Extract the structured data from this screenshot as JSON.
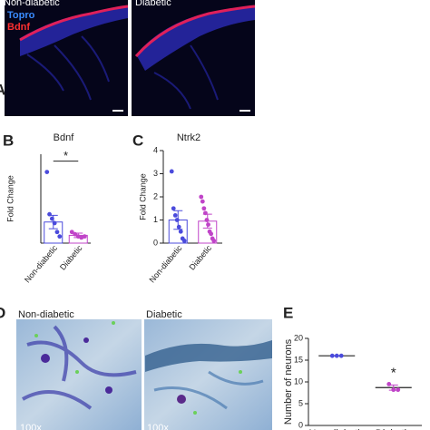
{
  "figure": {
    "panel_a": {
      "letter": "A",
      "left_label": "Non-diabetic",
      "right_label": "Diabetic",
      "stain_1": "Topro",
      "stain_2": "Bdnf"
    },
    "panel_d": {
      "letter": "D",
      "left_label": "Non-diabetic",
      "right_label": "Diabetic",
      "left_mag": "100x",
      "right_mag": "100x"
    },
    "letters": [
      "B",
      "C",
      "E"
    ]
  },
  "chart_data": [
    {
      "type": "bar",
      "title": "Bdnf",
      "ylabel": "Fold Change",
      "categories": [
        "Non-diabetic",
        "Diabetic"
      ],
      "values": [
        0.95,
        0.35
      ],
      "errors": [
        0.3,
        0.1
      ],
      "colors": [
        "#4b4bdc",
        "#c044c8"
      ],
      "points": [
        [
          3.2,
          1.3,
          1.1,
          0.9,
          0.5,
          0.3
        ],
        [
          0.5,
          0.4,
          0.3,
          0.25,
          0.3
        ]
      ],
      "ylim": [
        0,
        4
      ],
      "annotation": "*"
    },
    {
      "type": "bar",
      "title": "Ntrk2",
      "ylabel": "Fold Change",
      "categories": [
        "Non-diabetic",
        "Diabetic"
      ],
      "values": [
        1.0,
        0.95
      ],
      "errors": [
        0.4,
        0.3
      ],
      "colors": [
        "#4b4bdc",
        "#c044c8"
      ],
      "points": [
        [
          3.1,
          1.5,
          1.2,
          1.0,
          0.7,
          0.5,
          0.2,
          0.1
        ],
        [
          2.0,
          1.8,
          1.5,
          1.3,
          1.0,
          0.8,
          0.5,
          0.4,
          0.2,
          0.1
        ]
      ],
      "ylim": [
        0,
        4
      ],
      "yticks": [
        0,
        1,
        2,
        3,
        4
      ]
    },
    {
      "type": "dot",
      "ylabel": "Number of neurons",
      "categories": [
        "Non-diabetic",
        "Diabetic"
      ],
      "values": [
        16,
        8.7
      ],
      "errors": [
        0,
        0.6
      ],
      "colors": [
        "#4b4bdc",
        "#c044c8"
      ],
      "points": [
        [
          16,
          16,
          16
        ],
        [
          9.5,
          8.2,
          8.2
        ]
      ],
      "ylim": [
        0,
        20
      ],
      "yticks": [
        0,
        5,
        10,
        15,
        20
      ],
      "annotation": "*"
    }
  ]
}
